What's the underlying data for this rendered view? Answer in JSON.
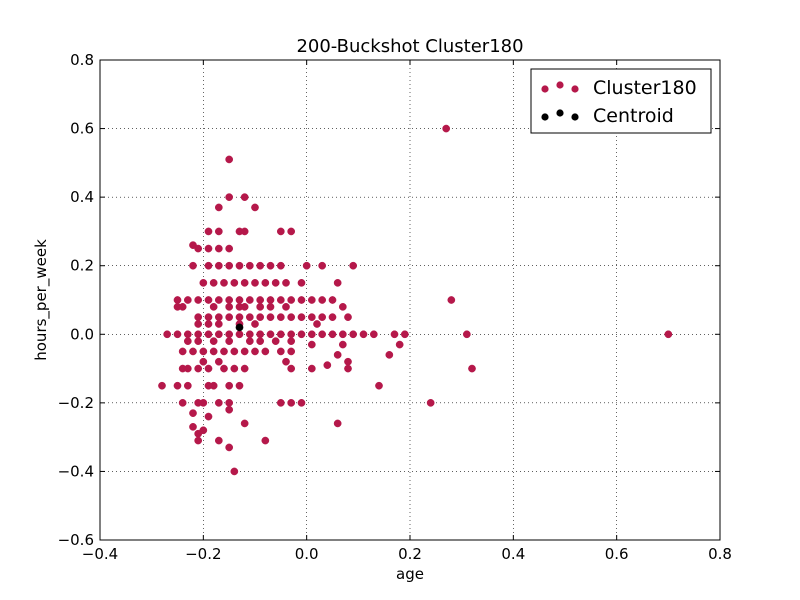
{
  "chart_data": {
    "type": "scatter",
    "title": "200-Buckshot Cluster180",
    "xlabel": "age",
    "ylabel": "hours_per_week",
    "xlim": [
      -0.4,
      0.8
    ],
    "ylim": [
      -0.6,
      0.8
    ],
    "xticks": [
      -0.4,
      -0.2,
      0.0,
      0.2,
      0.4,
      0.6,
      0.8
    ],
    "yticks": [
      -0.6,
      -0.4,
      -0.2,
      0.0,
      0.2,
      0.4,
      0.6,
      0.8
    ],
    "xtick_labels": [
      "−0.4",
      "−0.2",
      "0.0",
      "0.2",
      "0.4",
      "0.6",
      "0.8"
    ],
    "ytick_labels": [
      "−0.6",
      "−0.4",
      "−0.2",
      "0.0",
      "0.2",
      "0.4",
      "0.6",
      "0.8"
    ],
    "grid": true,
    "legend_position": "top-right",
    "series": [
      {
        "name": "Cluster180",
        "color": "#b5184a",
        "points": [
          [
            -0.15,
            0.51
          ],
          [
            -0.15,
            0.4
          ],
          [
            -0.12,
            0.4
          ],
          [
            -0.17,
            0.37
          ],
          [
            -0.1,
            0.37
          ],
          [
            -0.19,
            0.3
          ],
          [
            -0.17,
            0.3
          ],
          [
            -0.13,
            0.3
          ],
          [
            -0.12,
            0.3
          ],
          [
            -0.05,
            0.3
          ],
          [
            -0.03,
            0.3
          ],
          [
            -0.22,
            0.26
          ],
          [
            -0.21,
            0.25
          ],
          [
            -0.19,
            0.25
          ],
          [
            -0.17,
            0.25
          ],
          [
            -0.15,
            0.25
          ],
          [
            -0.22,
            0.2
          ],
          [
            -0.19,
            0.2
          ],
          [
            -0.17,
            0.2
          ],
          [
            -0.15,
            0.2
          ],
          [
            -0.13,
            0.2
          ],
          [
            -0.11,
            0.2
          ],
          [
            -0.09,
            0.2
          ],
          [
            -0.07,
            0.2
          ],
          [
            -0.05,
            0.2
          ],
          [
            0.0,
            0.2
          ],
          [
            0.03,
            0.2
          ],
          [
            0.09,
            0.2
          ],
          [
            -0.2,
            0.15
          ],
          [
            -0.18,
            0.15
          ],
          [
            -0.16,
            0.15
          ],
          [
            -0.14,
            0.15
          ],
          [
            -0.12,
            0.15
          ],
          [
            -0.1,
            0.15
          ],
          [
            -0.08,
            0.15
          ],
          [
            -0.06,
            0.15
          ],
          [
            -0.04,
            0.15
          ],
          [
            -0.01,
            0.15
          ],
          [
            0.06,
            0.15
          ],
          [
            -0.25,
            0.1
          ],
          [
            -0.23,
            0.1
          ],
          [
            -0.21,
            0.1
          ],
          [
            -0.19,
            0.1
          ],
          [
            -0.17,
            0.1
          ],
          [
            -0.15,
            0.1
          ],
          [
            -0.13,
            0.1
          ],
          [
            -0.11,
            0.1
          ],
          [
            -0.09,
            0.1
          ],
          [
            -0.07,
            0.1
          ],
          [
            -0.05,
            0.1
          ],
          [
            -0.03,
            0.1
          ],
          [
            -0.01,
            0.1
          ],
          [
            0.01,
            0.1
          ],
          [
            0.03,
            0.1
          ],
          [
            0.05,
            0.1
          ],
          [
            0.28,
            0.1
          ],
          [
            -0.25,
            0.08
          ],
          [
            -0.24,
            0.08
          ],
          [
            -0.18,
            0.08
          ],
          [
            -0.15,
            0.08
          ],
          [
            -0.13,
            0.08
          ],
          [
            -0.12,
            0.08
          ],
          [
            -0.09,
            0.08
          ],
          [
            -0.07,
            0.08
          ],
          [
            -0.04,
            0.08
          ],
          [
            0.07,
            0.08
          ],
          [
            -0.21,
            0.05
          ],
          [
            -0.19,
            0.05
          ],
          [
            -0.17,
            0.05
          ],
          [
            -0.15,
            0.05
          ],
          [
            -0.13,
            0.05
          ],
          [
            -0.11,
            0.05
          ],
          [
            -0.09,
            0.05
          ],
          [
            -0.07,
            0.05
          ],
          [
            -0.05,
            0.05
          ],
          [
            -0.03,
            0.05
          ],
          [
            -0.01,
            0.05
          ],
          [
            0.01,
            0.05
          ],
          [
            0.03,
            0.05
          ],
          [
            0.05,
            0.05
          ],
          [
            0.08,
            0.05
          ],
          [
            -0.21,
            0.03
          ],
          [
            -0.19,
            0.03
          ],
          [
            -0.17,
            0.03
          ],
          [
            -0.13,
            0.03
          ],
          [
            -0.1,
            0.03
          ],
          [
            0.02,
            0.03
          ],
          [
            -0.27,
            0.0
          ],
          [
            -0.25,
            0.0
          ],
          [
            -0.23,
            0.0
          ],
          [
            -0.21,
            0.0
          ],
          [
            -0.19,
            0.0
          ],
          [
            -0.17,
            0.0
          ],
          [
            -0.15,
            0.0
          ],
          [
            -0.13,
            0.0
          ],
          [
            -0.11,
            0.0
          ],
          [
            -0.09,
            0.0
          ],
          [
            -0.07,
            0.0
          ],
          [
            -0.05,
            0.0
          ],
          [
            -0.03,
            0.0
          ],
          [
            -0.01,
            0.0
          ],
          [
            0.01,
            0.0
          ],
          [
            0.03,
            0.0
          ],
          [
            0.05,
            0.0
          ],
          [
            0.07,
            0.0
          ],
          [
            0.09,
            0.0
          ],
          [
            0.11,
            0.0
          ],
          [
            0.13,
            0.0
          ],
          [
            0.17,
            0.0
          ],
          [
            0.19,
            0.0
          ],
          [
            0.31,
            0.0
          ],
          [
            0.7,
            0.0
          ],
          [
            -0.23,
            -0.02
          ],
          [
            -0.21,
            -0.02
          ],
          [
            -0.18,
            -0.02
          ],
          [
            -0.15,
            -0.02
          ],
          [
            -0.11,
            -0.02
          ],
          [
            -0.09,
            -0.02
          ],
          [
            -0.06,
            -0.02
          ],
          [
            -0.03,
            -0.02
          ],
          [
            0.01,
            -0.03
          ],
          [
            0.07,
            -0.03
          ],
          [
            0.18,
            -0.03
          ],
          [
            -0.24,
            -0.05
          ],
          [
            -0.22,
            -0.05
          ],
          [
            -0.2,
            -0.05
          ],
          [
            -0.18,
            -0.05
          ],
          [
            -0.16,
            -0.05
          ],
          [
            -0.14,
            -0.05
          ],
          [
            -0.12,
            -0.05
          ],
          [
            -0.1,
            -0.05
          ],
          [
            -0.08,
            -0.05
          ],
          [
            -0.05,
            -0.05
          ],
          [
            -0.03,
            -0.05
          ],
          [
            0.06,
            -0.06
          ],
          [
            0.16,
            -0.06
          ],
          [
            -0.2,
            -0.08
          ],
          [
            -0.17,
            -0.08
          ],
          [
            -0.04,
            -0.08
          ],
          [
            0.04,
            -0.09
          ],
          [
            0.08,
            -0.08
          ],
          [
            -0.24,
            -0.1
          ],
          [
            -0.23,
            -0.1
          ],
          [
            -0.21,
            -0.1
          ],
          [
            -0.19,
            -0.1
          ],
          [
            -0.16,
            -0.1
          ],
          [
            -0.14,
            -0.1
          ],
          [
            -0.12,
            -0.1
          ],
          [
            -0.03,
            -0.1
          ],
          [
            0.01,
            -0.1
          ],
          [
            0.08,
            -0.1
          ],
          [
            0.32,
            -0.1
          ],
          [
            -0.28,
            -0.15
          ],
          [
            -0.25,
            -0.15
          ],
          [
            -0.23,
            -0.15
          ],
          [
            -0.19,
            -0.15
          ],
          [
            -0.18,
            -0.15
          ],
          [
            -0.15,
            -0.15
          ],
          [
            -0.13,
            -0.15
          ],
          [
            0.14,
            -0.15
          ],
          [
            -0.24,
            -0.2
          ],
          [
            -0.21,
            -0.2
          ],
          [
            -0.2,
            -0.2
          ],
          [
            -0.17,
            -0.2
          ],
          [
            -0.15,
            -0.2
          ],
          [
            -0.05,
            -0.2
          ],
          [
            -0.03,
            -0.2
          ],
          [
            -0.01,
            -0.2
          ],
          [
            0.24,
            -0.2
          ],
          [
            -0.22,
            -0.23
          ],
          [
            -0.19,
            -0.24
          ],
          [
            -0.15,
            -0.22
          ],
          [
            -0.22,
            -0.27
          ],
          [
            -0.12,
            -0.26
          ],
          [
            0.06,
            -0.26
          ],
          [
            -0.21,
            -0.29
          ],
          [
            -0.2,
            -0.28
          ],
          [
            -0.21,
            -0.31
          ],
          [
            -0.17,
            -0.31
          ],
          [
            -0.08,
            -0.31
          ],
          [
            -0.15,
            -0.33
          ],
          [
            -0.14,
            -0.4
          ],
          [
            0.27,
            0.6
          ]
        ]
      },
      {
        "name": "Centroid",
        "color": "#000000",
        "points": [
          [
            -0.13,
            0.02
          ]
        ]
      }
    ]
  }
}
